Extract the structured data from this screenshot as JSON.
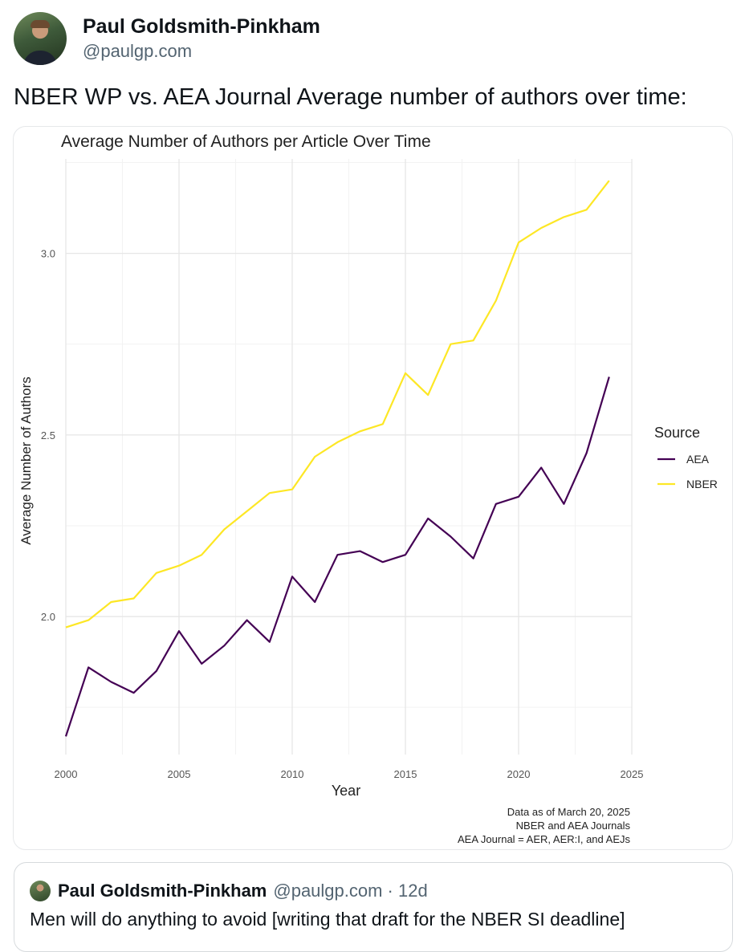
{
  "post": {
    "author_name": "Paul Goldsmith-Pinkham",
    "author_handle": "@paulgp.com",
    "text": "NBER WP vs. AEA Journal Average number of authors over time:"
  },
  "quote": {
    "author_name": "Paul Goldsmith-Pinkham",
    "meta": "@paulgp.com · 12d",
    "text": "Men will do anything to avoid [writing that draft for the NBER SI deadline]"
  },
  "icons": {
    "avatar": "profile-photo",
    "quote_avatar": "profile-photo-small"
  },
  "chart_data": {
    "type": "line",
    "title": "Average Number of Authors per Article Over Time",
    "xlabel": "Year",
    "ylabel": "Average Number of Authors",
    "x": [
      2000,
      2001,
      2002,
      2003,
      2004,
      2005,
      2006,
      2007,
      2008,
      2009,
      2010,
      2011,
      2012,
      2013,
      2014,
      2015,
      2016,
      2017,
      2018,
      2019,
      2020,
      2021,
      2022,
      2023,
      2024
    ],
    "xticks": [
      2000,
      2005,
      2010,
      2015,
      2020,
      2025
    ],
    "yticks": [
      2.0,
      2.5,
      3.0
    ],
    "ytick_labels": [
      "2.0",
      "2.5",
      "3.0"
    ],
    "xlim": [
      2000,
      2025
    ],
    "ylim": [
      1.62,
      3.26
    ],
    "grid": true,
    "legend_title": "Source",
    "legend_position": "right",
    "series": [
      {
        "name": "AEA",
        "color": "#440154",
        "values": [
          1.67,
          1.86,
          1.82,
          1.79,
          1.85,
          1.96,
          1.87,
          1.92,
          1.99,
          1.93,
          2.11,
          2.04,
          2.17,
          2.18,
          2.15,
          2.17,
          2.27,
          2.22,
          2.16,
          2.31,
          2.33,
          2.41,
          2.31,
          2.45,
          2.66
        ]
      },
      {
        "name": "NBER",
        "color": "#fde725",
        "values": [
          1.97,
          1.99,
          2.04,
          2.05,
          2.12,
          2.14,
          2.17,
          2.24,
          2.29,
          2.34,
          2.35,
          2.44,
          2.48,
          2.51,
          2.53,
          2.67,
          2.61,
          2.75,
          2.76,
          2.87,
          3.03,
          3.07,
          3.1,
          3.12,
          3.2
        ]
      }
    ],
    "caption": [
      "Data as of March 20, 2025",
      "NBER and AEA Journals",
      "AEA Journal = AER, AER:I, and AEJs"
    ]
  }
}
